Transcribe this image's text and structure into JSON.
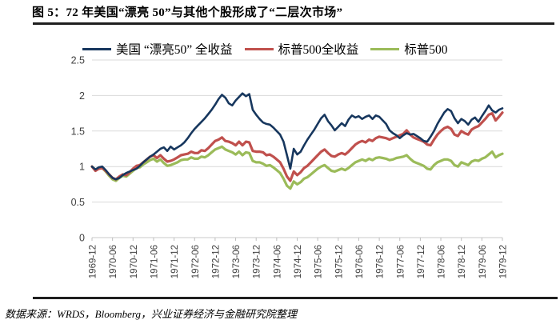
{
  "figure": {
    "title": "图 5：72 年美国“漂亮 50”与其他个股形成了“二层次市场”",
    "source_note": "数据来源：WRDS，Bloomberg，兴业证券经济与金融研究院整理"
  },
  "colors": {
    "grid": "#D9D9D9",
    "axis_line": "#C8C8C8",
    "tick": "#BFBFBF",
    "axis_text": "#404040",
    "rule": "#1f1f1f",
    "nifty_navy": "#17375E",
    "sp500_tr_red": "#C0504D",
    "sp500_green": "#9BBB59"
  },
  "chart_data": {
    "type": "line",
    "title": "",
    "xlabel": "",
    "ylabel": "",
    "ylim": [
      0,
      2.5
    ],
    "yticks": [
      0,
      0.5,
      1,
      1.5,
      2,
      2.5
    ],
    "grid": "horizontal",
    "legend_position": "top",
    "x_start": "1969-12",
    "x_end": "1979-12",
    "months_span": 120,
    "x_tick_interval_months": 6,
    "x_tick_labels": [
      "1969-12",
      "1970-06",
      "1970-12",
      "1971-06",
      "1971-12",
      "1972-06",
      "1972-12",
      "1973-06",
      "1973-12",
      "1974-06",
      "1974-12",
      "1975-06",
      "1975-12",
      "1976-06",
      "1976-12",
      "1977-06",
      "1977-12",
      "1978-06",
      "1978-12",
      "1979-06",
      "1979-12"
    ],
    "series": [
      {
        "name": "美国 “漂亮50” 全收益",
        "color": "#17375E",
        "width": 2.6,
        "values": [
          1.0,
          0.96,
          0.99,
          1.0,
          0.95,
          0.89,
          0.84,
          0.82,
          0.84,
          0.88,
          0.91,
          0.93,
          0.95,
          0.97,
          1.01,
          1.06,
          1.1,
          1.14,
          1.17,
          1.21,
          1.25,
          1.27,
          1.22,
          1.28,
          1.24,
          1.27,
          1.3,
          1.34,
          1.4,
          1.47,
          1.53,
          1.58,
          1.63,
          1.68,
          1.74,
          1.8,
          1.87,
          1.95,
          2.01,
          1.97,
          1.89,
          1.86,
          1.93,
          1.98,
          2.03,
          1.99,
          2.02,
          1.8,
          1.73,
          1.67,
          1.62,
          1.6,
          1.59,
          1.55,
          1.5,
          1.45,
          1.35,
          1.16,
          0.97,
          1.25,
          1.17,
          1.21,
          1.3,
          1.38,
          1.45,
          1.52,
          1.6,
          1.68,
          1.73,
          1.64,
          1.58,
          1.51,
          1.56,
          1.61,
          1.57,
          1.66,
          1.72,
          1.69,
          1.71,
          1.67,
          1.7,
          1.72,
          1.67,
          1.72,
          1.7,
          1.65,
          1.6,
          1.51,
          1.47,
          1.44,
          1.4,
          1.44,
          1.47,
          1.45,
          1.46,
          1.43,
          1.4,
          1.36,
          1.35,
          1.42,
          1.5,
          1.6,
          1.68,
          1.76,
          1.81,
          1.78,
          1.68,
          1.61,
          1.67,
          1.64,
          1.59,
          1.66,
          1.69,
          1.63,
          1.71,
          1.78,
          1.86,
          1.79,
          1.76,
          1.8,
          1.82
        ]
      },
      {
        "name": "标普500全收益",
        "color": "#C0504D",
        "width": 3.2,
        "values": [
          1.0,
          0.94,
          0.97,
          0.98,
          0.94,
          0.89,
          0.84,
          0.82,
          0.86,
          0.89,
          0.88,
          0.92,
          0.97,
          1.01,
          1.02,
          1.06,
          1.1,
          1.14,
          1.16,
          1.12,
          1.16,
          1.11,
          1.07,
          1.08,
          1.1,
          1.13,
          1.16,
          1.17,
          1.18,
          1.21,
          1.19,
          1.19,
          1.23,
          1.22,
          1.26,
          1.31,
          1.36,
          1.38,
          1.41,
          1.36,
          1.35,
          1.33,
          1.3,
          1.35,
          1.3,
          1.35,
          1.34,
          1.22,
          1.21,
          1.21,
          1.2,
          1.16,
          1.17,
          1.14,
          1.1,
          1.06,
          0.97,
          0.86,
          0.8,
          0.93,
          0.88,
          0.92,
          0.98,
          1.01,
          1.06,
          1.11,
          1.16,
          1.21,
          1.24,
          1.19,
          1.15,
          1.14,
          1.17,
          1.19,
          1.17,
          1.21,
          1.26,
          1.31,
          1.34,
          1.36,
          1.34,
          1.38,
          1.36,
          1.4,
          1.42,
          1.41,
          1.4,
          1.38,
          1.4,
          1.42,
          1.44,
          1.46,
          1.51,
          1.45,
          1.41,
          1.39,
          1.37,
          1.35,
          1.31,
          1.3,
          1.38,
          1.45,
          1.5,
          1.54,
          1.56,
          1.53,
          1.45,
          1.43,
          1.5,
          1.47,
          1.45,
          1.52,
          1.55,
          1.57,
          1.62,
          1.67,
          1.73,
          1.75,
          1.65,
          1.7,
          1.76
        ]
      },
      {
        "name": "标普500",
        "color": "#9BBB59",
        "width": 3.2,
        "values": [
          1.0,
          0.95,
          0.98,
          0.98,
          0.93,
          0.87,
          0.82,
          0.8,
          0.84,
          0.87,
          0.86,
          0.9,
          0.94,
          0.98,
          0.99,
          1.03,
          1.06,
          1.09,
          1.11,
          1.07,
          1.1,
          1.05,
          1.01,
          1.02,
          1.04,
          1.06,
          1.09,
          1.1,
          1.1,
          1.13,
          1.11,
          1.11,
          1.14,
          1.13,
          1.16,
          1.2,
          1.24,
          1.26,
          1.28,
          1.24,
          1.22,
          1.2,
          1.17,
          1.21,
          1.16,
          1.2,
          1.19,
          1.08,
          1.06,
          1.06,
          1.04,
          1.01,
          1.02,
          0.99,
          0.95,
          0.91,
          0.83,
          0.73,
          0.69,
          0.79,
          0.75,
          0.78,
          0.83,
          0.85,
          0.89,
          0.93,
          0.97,
          1.0,
          1.02,
          0.98,
          0.94,
          0.93,
          0.95,
          0.97,
          0.95,
          0.98,
          1.02,
          1.06,
          1.08,
          1.1,
          1.08,
          1.11,
          1.09,
          1.12,
          1.13,
          1.12,
          1.11,
          1.09,
          1.1,
          1.12,
          1.13,
          1.14,
          1.16,
          1.11,
          1.07,
          1.05,
          1.03,
          1.01,
          0.97,
          0.96,
          1.02,
          1.06,
          1.08,
          1.1,
          1.1,
          1.08,
          1.02,
          1.0,
          1.06,
          1.04,
          1.02,
          1.07,
          1.09,
          1.08,
          1.11,
          1.13,
          1.17,
          1.21,
          1.13,
          1.16,
          1.18
        ]
      }
    ]
  }
}
